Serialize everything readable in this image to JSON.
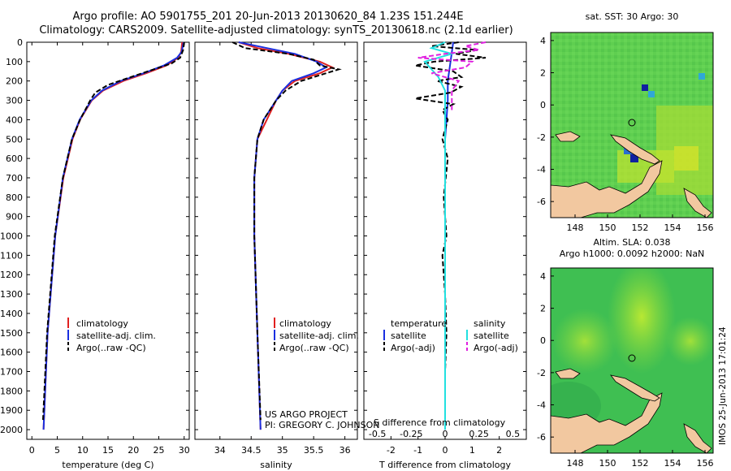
{
  "header": {
    "title_line1": "Argo profile: AO 5901755_201 20-Jun-2013 20130620_84 1.23S 151.244E",
    "title_line2": "Climatology: CARS2009. Satellite-adjusted climatology: synTS_20130618.nc (2.1d earlier)"
  },
  "colors": {
    "climatology": "#e02020",
    "satellite": "#1a2fe0",
    "argo": "#000000",
    "salinity_satellite": "#22e0e0",
    "salinity_argo": "#e020e0",
    "land": "#f2c8a0"
  },
  "depth_axis": {
    "ylim": [
      0,
      2050
    ],
    "ticks": [
      "0",
      "100",
      "200",
      "300",
      "400",
      "500",
      "600",
      "700",
      "800",
      "900",
      "1000",
      "1100",
      "1200",
      "1300",
      "1400",
      "1500",
      "1600",
      "1700",
      "1800",
      "1900",
      "2000"
    ]
  },
  "chart_data": [
    {
      "type": "line",
      "id": "temperature",
      "xlabel": "temperature (deg C)",
      "xlim": [
        -1,
        31
      ],
      "xticks": [
        "0",
        "5",
        "10",
        "15",
        "20",
        "25",
        "30"
      ],
      "legend": [
        "climatology",
        "satellite-adj. clim.",
        "Argo(..raw -QC)"
      ],
      "series": [
        {
          "name": "climatology",
          "depth": [
            0,
            50,
            80,
            120,
            160,
            200,
            250,
            300,
            400,
            500,
            700,
            1000,
            1500,
            2000
          ],
          "values": [
            29.6,
            29.4,
            28.8,
            26.5,
            22.5,
            18.0,
            14.0,
            11.8,
            9.5,
            8.0,
            6.2,
            4.6,
            3.1,
            2.3
          ]
        },
        {
          "name": "satellite-adj. clim.",
          "depth": [
            0,
            50,
            80,
            120,
            160,
            200,
            250,
            300,
            400,
            500,
            700,
            1000,
            1500,
            2000
          ],
          "values": [
            29.9,
            29.5,
            28.6,
            26.0,
            22.0,
            17.5,
            13.8,
            11.7,
            9.4,
            7.9,
            6.1,
            4.6,
            3.1,
            2.3
          ]
        },
        {
          "name": "Argo(..raw -QC)",
          "depth": [
            0,
            40,
            80,
            110,
            140,
            180,
            220,
            260,
            300,
            350,
            400,
            500,
            700,
            1000,
            1500,
            1950
          ],
          "values": [
            30.0,
            29.8,
            29.2,
            27.5,
            24.0,
            19.5,
            15.0,
            12.5,
            11.5,
            10.5,
            9.5,
            7.9,
            6.1,
            4.5,
            3.0,
            2.2
          ]
        }
      ]
    },
    {
      "type": "line",
      "id": "salinity",
      "xlabel": "salinity",
      "xlim": [
        33.6,
        36.2
      ],
      "xticks": [
        "34",
        "34.5",
        "35",
        "35.5",
        "36"
      ],
      "legend": [
        "climatology",
        "satellite-adj. clim.",
        "Argo(..raw -QC)"
      ],
      "series": [
        {
          "name": "climatology",
          "depth": [
            0,
            30,
            60,
            100,
            130,
            160,
            200,
            250,
            300,
            400,
            500,
            700,
            1000,
            1500,
            2000
          ],
          "values": [
            34.3,
            34.6,
            35.1,
            35.6,
            35.8,
            35.6,
            35.2,
            35.0,
            34.9,
            34.75,
            34.6,
            34.55,
            34.55,
            34.6,
            34.65
          ]
        },
        {
          "name": "satellite-adj. clim.",
          "depth": [
            0,
            30,
            60,
            100,
            130,
            160,
            200,
            250,
            300,
            400,
            500,
            700,
            1000,
            1500,
            2000
          ],
          "values": [
            34.3,
            34.75,
            35.2,
            35.55,
            35.7,
            35.5,
            35.15,
            35.0,
            34.9,
            34.7,
            34.6,
            34.55,
            34.55,
            34.6,
            34.65
          ]
        },
        {
          "name": "Argo(..raw -QC)",
          "depth": [
            0,
            30,
            60,
            90,
            120,
            140,
            160,
            200,
            250,
            300,
            400,
            500,
            700,
            1000,
            1500,
            1950
          ],
          "values": [
            34.2,
            34.4,
            35.1,
            35.5,
            35.6,
            35.9,
            35.7,
            35.3,
            35.05,
            34.9,
            34.7,
            34.6,
            34.55,
            34.55,
            34.6,
            34.65
          ]
        }
      ]
    },
    {
      "type": "line",
      "id": "difference",
      "xlabel": "T difference from climatology",
      "xlabel_top": "S difference from climatology",
      "xlim": [
        -3,
        3
      ],
      "xticks": [
        "-2",
        "-1",
        "0",
        "1",
        "2"
      ],
      "xticks_top": [
        "-0.5",
        "-0.25",
        "0",
        "0.25",
        "0.5"
      ],
      "legend_title_t": "temperature",
      "legend_title_s": "salinity",
      "legend_t": [
        "satellite",
        "Argo(-adj)"
      ],
      "legend_s": [
        "satellite",
        "Argo(-adj)"
      ],
      "series": [
        {
          "name": "T satellite",
          "depth": [
            0,
            100,
            200,
            300,
            400,
            500,
            700,
            1000,
            1500,
            2000
          ],
          "values": [
            0.3,
            0.2,
            0.1,
            0.1,
            0.05,
            0.0,
            0.0,
            0.0,
            0.0,
            0.0
          ]
        },
        {
          "name": "T Argo(-adj)",
          "depth": [
            0,
            20,
            40,
            60,
            80,
            100,
            120,
            150,
            180,
            200,
            230,
            260,
            290,
            320,
            350,
            400,
            500,
            600,
            800,
            1000,
            1100,
            1300,
            1500,
            1700,
            1900
          ],
          "values": [
            0.5,
            -0.5,
            1.2,
            0.4,
            1.5,
            -0.4,
            -1.1,
            0.3,
            0.6,
            -0.3,
            0.6,
            0.2,
            -1.1,
            0.3,
            -0.1,
            0.1,
            -0.1,
            0.1,
            -0.05,
            0.05,
            -0.1,
            0.0,
            0.05,
            0.0,
            0.0
          ]
        },
        {
          "name": "S satellite",
          "depth": [
            0,
            30,
            60,
            100,
            140,
            180,
            250,
            300,
            400,
            600,
            1000,
            2000
          ],
          "values": [
            0.0,
            -0.1,
            0.05,
            -0.15,
            -0.1,
            -0.05,
            0.0,
            0.0,
            0.0,
            0.0,
            0.0,
            0.0
          ]
        },
        {
          "name": "S Argo(-adj)",
          "depth": [
            0,
            20,
            40,
            60,
            80,
            100,
            130,
            160,
            200,
            250,
            300,
            350
          ],
          "values": [
            0.3,
            0.15,
            0.25,
            0.0,
            -0.2,
            0.2,
            0.15,
            -0.1,
            0.1,
            0.05,
            0.05,
            0.05
          ]
        }
      ]
    },
    {
      "type": "heatmap",
      "id": "sst_map",
      "title": "sat. SST: 30 Argo: 30",
      "xlim": [
        146.5,
        156.5
      ],
      "ylim": [
        -7,
        4.5
      ],
      "xticks": [
        "148",
        "150",
        "152",
        "154",
        "156"
      ],
      "yticks": [
        "4",
        "2",
        "0",
        "-2",
        "-4",
        "-6"
      ],
      "argo_marker": {
        "lon": 151.244,
        "lat": -1.23
      }
    },
    {
      "type": "heatmap",
      "id": "sla_map",
      "title_line1": "Altim. SLA: 0.038",
      "title_line2": "Argo h1000: 0.0092 h2000: NaN",
      "xlim": [
        146.5,
        156.5
      ],
      "ylim": [
        -7,
        4.5
      ],
      "xticks": [
        "148",
        "150",
        "152",
        "154",
        "156"
      ],
      "yticks": [
        "4",
        "2",
        "0",
        "-2",
        "-4",
        "-6"
      ],
      "argo_marker": {
        "lon": 151.244,
        "lat": -1.23
      }
    }
  ],
  "credits": {
    "project": "US ARGO PROJECT",
    "pi": "PI: GREGORY C. JOHNSON",
    "imos": "IMOS 25-Jun-2013 17:01:24"
  }
}
